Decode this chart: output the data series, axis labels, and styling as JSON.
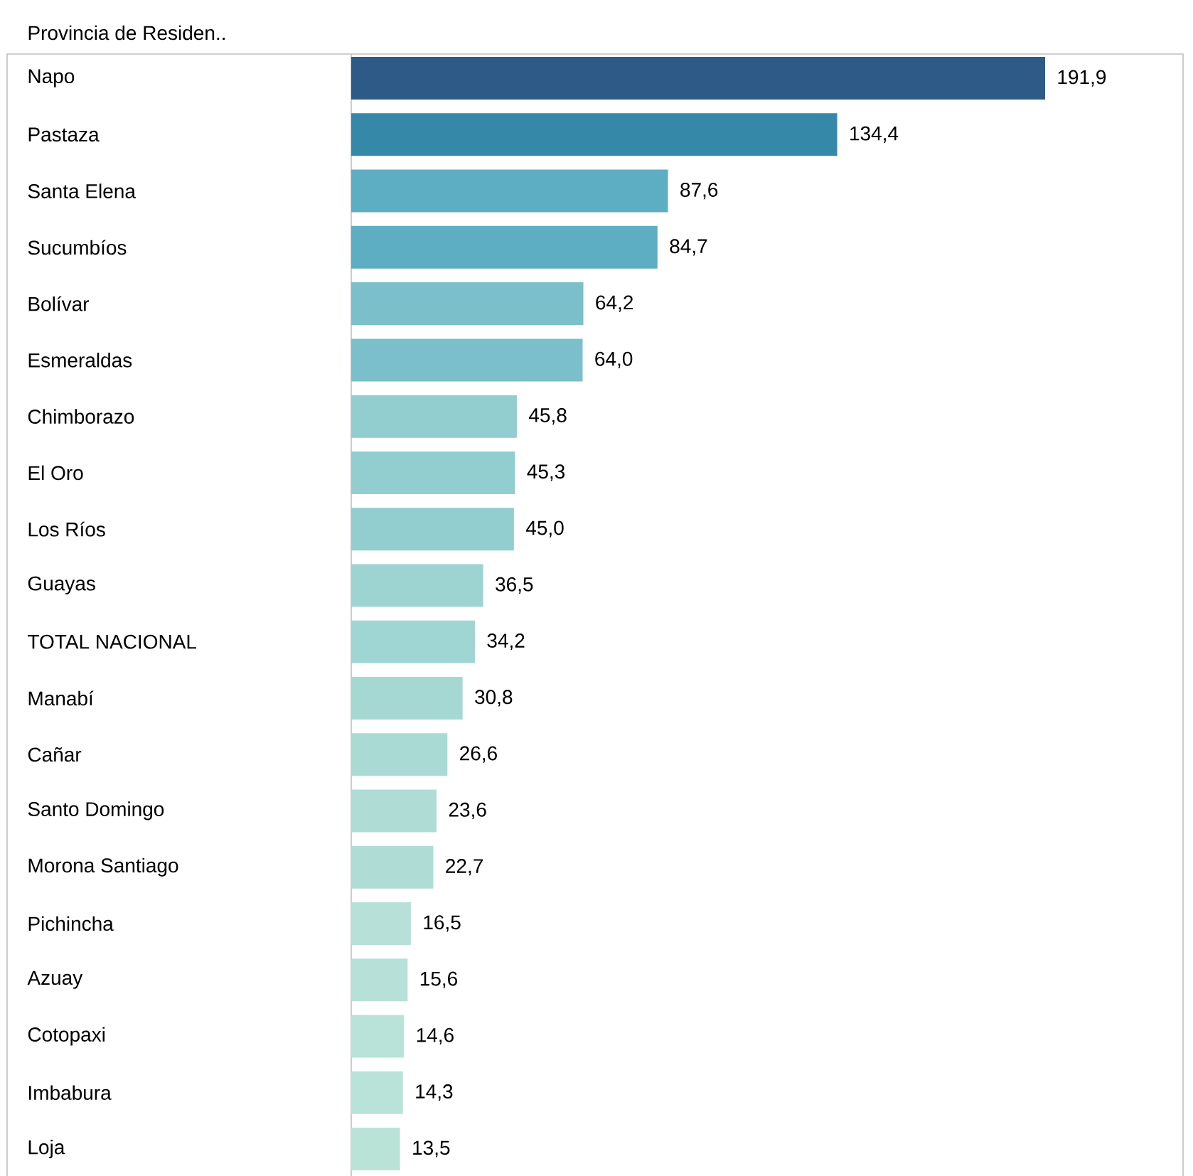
{
  "chart_data": {
    "type": "bar",
    "orientation": "horizontal",
    "ylabel": "Provincia de Residen..",
    "categories": [
      "Napo",
      "Pastaza",
      "Santa Elena",
      "Sucumbíos",
      "Bolívar",
      "Esmeraldas",
      "Chimborazo",
      "El Oro",
      "Los Ríos",
      "Guayas",
      "TOTAL NACIONAL",
      "Manabí",
      "Cañar",
      "Santo Domingo",
      "Morona Santiago",
      "Pichincha",
      "Azuay",
      "Cotopaxi",
      "Imbabura",
      "Loja"
    ],
    "values": [
      191.9,
      134.4,
      87.6,
      84.7,
      64.2,
      64.0,
      45.8,
      45.3,
      45.0,
      36.5,
      34.2,
      30.8,
      26.6,
      23.6,
      22.7,
      16.5,
      15.6,
      14.6,
      14.3,
      13.5
    ],
    "value_labels": [
      "191,9",
      "134,4",
      "87,6",
      "84,7",
      "64,2",
      "64,0",
      "45,8",
      "45,3",
      "45,0",
      "36,5",
      "34,2",
      "30,8",
      "26,6",
      "23,6",
      "22,7",
      "16,5",
      "15,6",
      "14,6",
      "14,3",
      "13,5"
    ],
    "colors": [
      "#2e5a87",
      "#3688a9",
      "#5daec2",
      "#5daec2",
      "#7bbfca",
      "#7bbfca",
      "#92cecf",
      "#92cecf",
      "#92cecf",
      "#9dd4d1",
      "#9fd5d2",
      "#a6d8d3",
      "#a9dad4",
      "#afddd6",
      "#afddd6",
      "#b6e0d8",
      "#b6e0d8",
      "#b9e3d8",
      "#b9e3d8",
      "#bae3d8"
    ]
  }
}
